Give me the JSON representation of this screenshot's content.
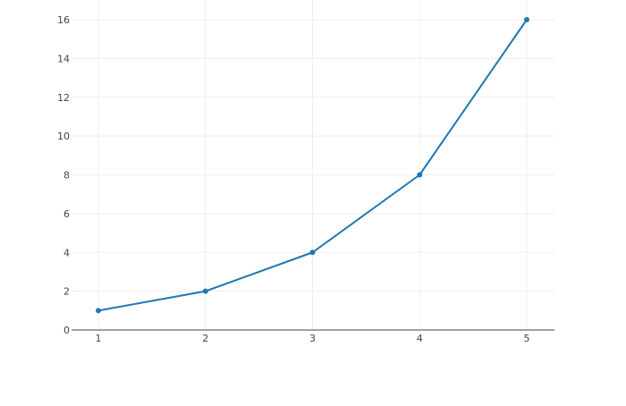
{
  "chart_data": {
    "type": "line",
    "title": "",
    "xlabel": "",
    "ylabel": "",
    "x": [
      1,
      2,
      3,
      4,
      5
    ],
    "series": [
      {
        "values": [
          1,
          2,
          4,
          8,
          16
        ],
        "color": "#1f77b4",
        "mode": "lines+markers"
      }
    ],
    "xlim": [
      0.75,
      5.25
    ],
    "ylim": [
      0,
      16
    ],
    "xticks": [
      "1",
      "2",
      "3",
      "4",
      "5"
    ],
    "yticks": [
      "0",
      "2",
      "4",
      "6",
      "8",
      "10",
      "12",
      "14",
      "16"
    ],
    "grid": true,
    "legend": "none"
  }
}
